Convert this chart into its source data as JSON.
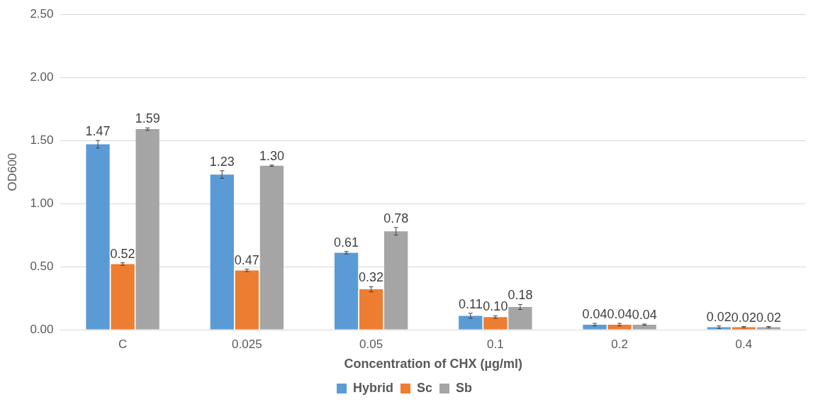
{
  "chart_data": {
    "type": "bar",
    "categories": [
      "C",
      "0.025",
      "0.05",
      "0.1",
      "0.2",
      "0.4"
    ],
    "xlabel": "Concentration of CHX (µg/ml)",
    "ylabel": "OD600",
    "series": [
      {
        "name": "Hybrid",
        "color": "#5b9bd5",
        "values": [
          1.47,
          1.23,
          0.61,
          0.11,
          0.04,
          0.02
        ],
        "errors": [
          0.03,
          0.03,
          0.01,
          0.02,
          0.01,
          0.01
        ],
        "value_labels": [
          "1.47",
          "1.23",
          "0.61",
          "0.11",
          "0.04",
          "0.02"
        ]
      },
      {
        "name": "Sc",
        "color": "#ed7d31",
        "values": [
          0.52,
          0.47,
          0.32,
          0.1,
          0.04,
          0.02
        ],
        "errors": [
          0.01,
          0.01,
          0.02,
          0.01,
          0.01,
          0.005
        ],
        "value_labels": [
          "0.52",
          "0.47",
          "0.32",
          "0.10",
          "0.04",
          "0.02"
        ]
      },
      {
        "name": "Sb",
        "color": "#a5a5a5",
        "values": [
          1.59,
          1.3,
          0.78,
          0.18,
          0.04,
          0.02
        ],
        "errors": [
          0.01,
          0.005,
          0.03,
          0.02,
          0.005,
          0.005
        ],
        "value_labels": [
          "1.59",
          "1.30",
          "0.78",
          "0.18",
          "0.04",
          "0.02"
        ]
      }
    ],
    "ylim": [
      0,
      2.5
    ],
    "yticks": [
      {
        "value": 0,
        "label": "0.00"
      },
      {
        "value": 0.5,
        "label": "0.50"
      },
      {
        "value": 1,
        "label": "1.00"
      },
      {
        "value": 1.5,
        "label": "1.50"
      },
      {
        "value": 2,
        "label": "2.00"
      },
      {
        "value": 2.5,
        "label": "2.50"
      }
    ],
    "grid": "y",
    "legend": "bottom"
  }
}
